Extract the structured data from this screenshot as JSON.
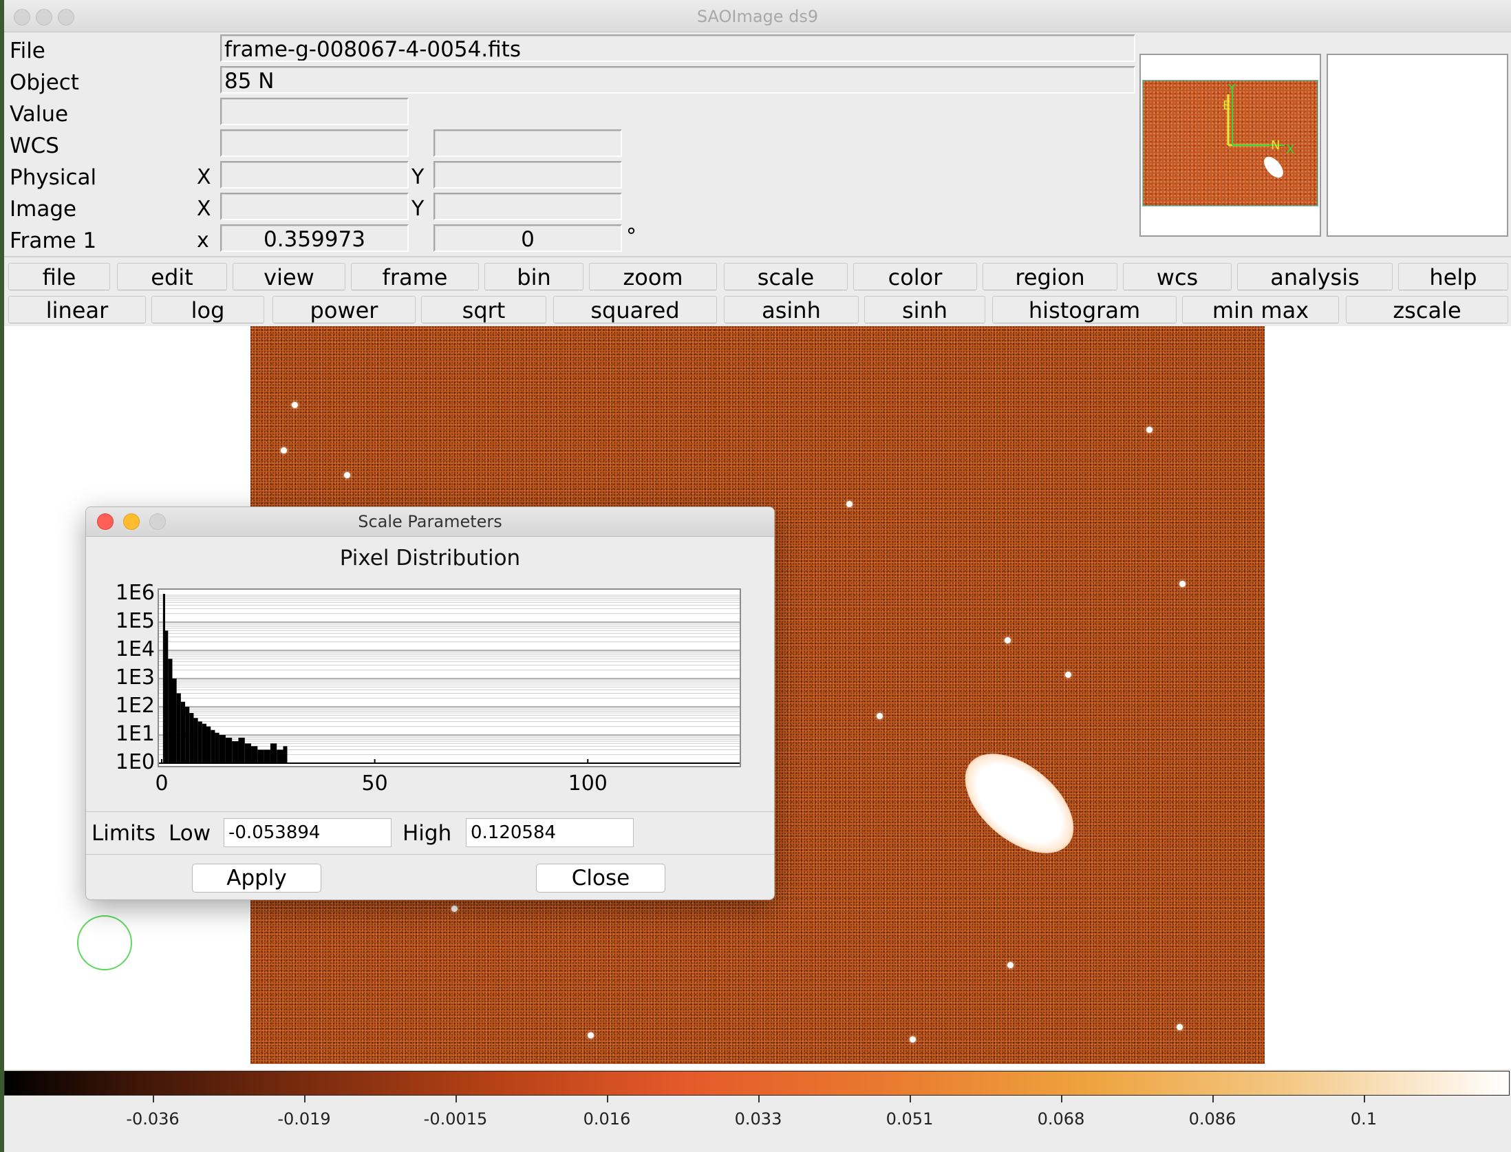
{
  "window": {
    "title": "SAOImage ds9"
  },
  "info": {
    "file_label": "File",
    "file_value": "frame-g-008067-4-0054.fits",
    "object_label": "Object",
    "object_value": "85 N",
    "value_label": "Value",
    "wcs_label": "WCS",
    "physical_label": "Physical",
    "image_label": "Image",
    "frame_label": "Frame 1",
    "x_label": "X",
    "y_label": "Y",
    "frame_x_label": "x",
    "zoom_value": "0.359973",
    "rotate_value": "0",
    "degree_symbol": "°"
  },
  "panner": {
    "compass_n": "N",
    "compass_e": "E",
    "axis_x": "X",
    "axis_y": "Y"
  },
  "menu_buttons": [
    "file",
    "edit",
    "view",
    "frame",
    "bin",
    "zoom",
    "scale",
    "color",
    "region",
    "wcs",
    "analysis",
    "help"
  ],
  "scale_buttons": [
    "linear",
    "log",
    "power",
    "sqrt",
    "squared",
    "asinh",
    "sinh",
    "histogram",
    "min max",
    "zscale"
  ],
  "colorbar": {
    "ticks": [
      "-0.036",
      "-0.019",
      "-0.0015",
      "0.016",
      "0.033",
      "0.051",
      "0.068",
      "0.086",
      "0.1"
    ]
  },
  "dialog": {
    "title": "Scale Parameters",
    "heading": "Pixel Distribution",
    "limits_label": "Limits",
    "low_label": "Low",
    "low_value": "-0.053894",
    "high_label": "High",
    "high_value": "0.120584",
    "apply_label": "Apply",
    "close_label": "Close"
  },
  "chart_data": {
    "type": "bar",
    "yscale": "log",
    "y_ticks": [
      "1E6",
      "1E5",
      "1E4",
      "1E3",
      "1E2",
      "1E1",
      "1E0"
    ],
    "x_ticks": [
      "0",
      "50",
      "100"
    ],
    "xlim": [
      0,
      135
    ],
    "ylim": [
      1,
      1000000
    ],
    "grid": true,
    "x": [
      0.3,
      0.8,
      1.5,
      2.5,
      3.5,
      4.5,
      5.5,
      6.5,
      7.5,
      8.5,
      9.5,
      10.5,
      11.5,
      12.5,
      13.5,
      15,
      16.5,
      18,
      19.5,
      21,
      22.5,
      24,
      25.5,
      27,
      28.5
    ],
    "values": [
      1000000,
      50000,
      5000,
      1000,
      300,
      150,
      100,
      60,
      40,
      30,
      25,
      20,
      15,
      12,
      10,
      8,
      6,
      8,
      5,
      4,
      3,
      3,
      5,
      3,
      4
    ]
  }
}
